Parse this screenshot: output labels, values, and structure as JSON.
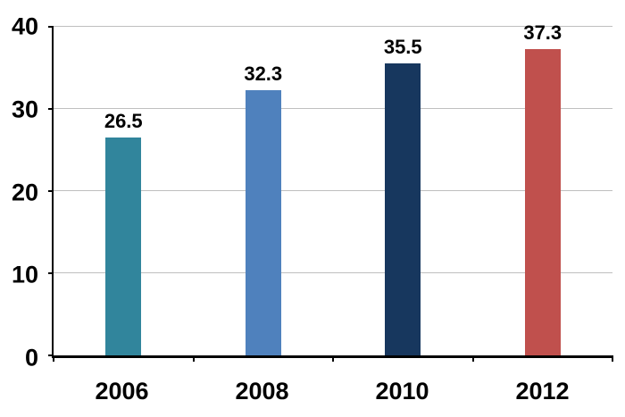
{
  "chart_data": {
    "type": "bar",
    "title": "",
    "xlabel": "",
    "ylabel": "",
    "categories": [
      "2006",
      "2008",
      "2010",
      "2012"
    ],
    "values": [
      26.5,
      32.3,
      35.5,
      37.3
    ],
    "value_labels": [
      "26.5",
      "32.3",
      "35.5",
      "37.3"
    ],
    "bar_colors": [
      "#31859C",
      "#4F81BD",
      "#17375E",
      "#C0504D"
    ],
    "ylim": [
      0,
      40
    ],
    "yticks": [
      0,
      10,
      20,
      30,
      40
    ],
    "grid": "horizontal",
    "legend": "none",
    "background_color": "#FFFFFF",
    "axis_color": "#000000",
    "gridline_color": "#BFBFBF"
  }
}
